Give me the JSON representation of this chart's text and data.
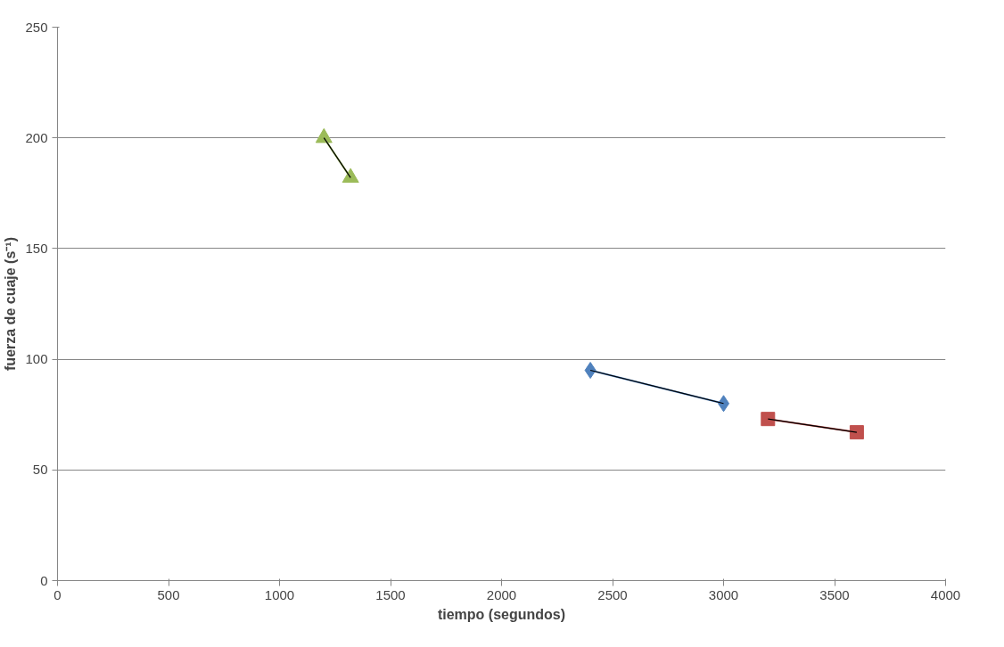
{
  "chart_data": {
    "type": "line",
    "xlabel": "tiempo (segundos)",
    "ylabel": "fuerza de cuaje (s⁻¹)",
    "xlim": [
      0,
      4000
    ],
    "xticks": [
      0,
      500,
      1000,
      1500,
      2000,
      2500,
      3000,
      3500,
      4000
    ],
    "ylim": [
      0,
      250
    ],
    "yticks": [
      0,
      50,
      100,
      150,
      200,
      250
    ],
    "grid": "y",
    "series": [
      {
        "color": "#9bbb59",
        "x": [
          1200,
          1320
        ],
        "values": [
          200,
          182
        ],
        "marker": "triangle"
      },
      {
        "color": "#4f81bd",
        "x": [
          2400,
          3000
        ],
        "values": [
          95,
          80
        ],
        "marker": "diamond"
      },
      {
        "color": "#c0504d",
        "x": [
          3200,
          3600
        ],
        "values": [
          73,
          67
        ],
        "marker": "square"
      },
      {
        "type": "line",
        "color": "#000000",
        "x": [
          1200,
          1320
        ],
        "values": [
          200,
          182
        ],
        "marker": "none"
      },
      {
        "type": "line",
        "color": "#000000",
        "x": [
          2400,
          3000
        ],
        "values": [
          95,
          80
        ],
        "marker": "none"
      },
      {
        "type": "line",
        "color": "#000000",
        "x": [
          3200,
          3600
        ],
        "values": [
          73,
          67
        ],
        "marker": "none"
      }
    ]
  }
}
